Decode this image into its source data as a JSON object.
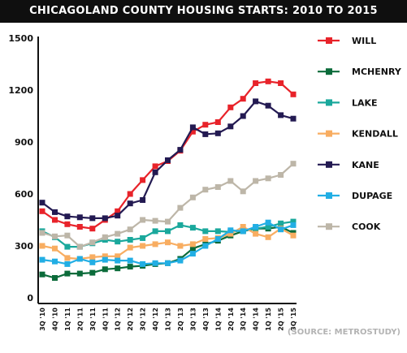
{
  "chart_data": {
    "type": "line",
    "title": "CHICAGOLAND COUNTY HOUSING STARTS: 2010 TO 2015",
    "xlabel": "",
    "ylabel": "",
    "ylim": [
      0,
      1500
    ],
    "yticks": [
      0,
      300,
      600,
      900,
      1200,
      1500
    ],
    "grid": false,
    "legend_position": "right",
    "categories": [
      "3Q '10",
      "4Q '10",
      "1Q '11",
      "2Q '11",
      "3Q '11",
      "4Q '11",
      "1Q '12",
      "2Q '12",
      "3Q '12",
      "4Q '12",
      "1Q '13",
      "2Q '13",
      "3Q '13",
      "4Q '13",
      "1Q '14",
      "2Q '14",
      "3Q '14",
      "4Q '14",
      "1Q '15",
      "2Q '15",
      "3Q '15"
    ],
    "series": [
      {
        "name": "WILL",
        "color": "#e8232a",
        "values": [
          500,
          450,
          425,
          410,
          400,
          450,
          500,
          600,
          680,
          760,
          790,
          850,
          960,
          1000,
          1015,
          1100,
          1150,
          1240,
          1250,
          1240,
          1175
        ]
      },
      {
        "name": "MCHENRY",
        "color": "#0b6b3a",
        "values": [
          135,
          115,
          140,
          140,
          145,
          165,
          170,
          180,
          185,
          195,
          200,
          225,
          285,
          310,
          330,
          360,
          385,
          400,
          400,
          410,
          375
        ]
      },
      {
        "name": "LAKE",
        "color": "#1aa89c",
        "values": [
          385,
          350,
          295,
          295,
          315,
          335,
          325,
          335,
          345,
          385,
          385,
          420,
          405,
          385,
          385,
          380,
          390,
          400,
          410,
          430,
          440
        ]
      },
      {
        "name": "KENDALL",
        "color": "#f8ad61",
        "values": [
          300,
          285,
          230,
          225,
          235,
          240,
          240,
          290,
          300,
          310,
          320,
          300,
          310,
          340,
          345,
          370,
          410,
          370,
          350,
          400,
          360
        ]
      },
      {
        "name": "KANE",
        "color": "#231a52",
        "values": [
          550,
          495,
          470,
          465,
          460,
          460,
          475,
          545,
          565,
          725,
          795,
          855,
          985,
          945,
          950,
          990,
          1050,
          1135,
          1110,
          1055,
          1035
        ]
      },
      {
        "name": "DUPAGE",
        "color": "#22aee4",
        "values": [
          220,
          210,
          195,
          225,
          205,
          220,
          215,
          215,
          195,
          200,
          200,
          215,
          255,
          300,
          340,
          390,
          385,
          410,
          435,
          395,
          420
        ]
      },
      {
        "name": "COOK",
        "color": "#bdb6a8",
        "values": [
          375,
          355,
          360,
          295,
          320,
          350,
          370,
          395,
          450,
          445,
          440,
          520,
          580,
          625,
          640,
          675,
          615,
          675,
          690,
          710,
          775
        ]
      }
    ],
    "source": "(SOURCE: METROSTUDY)"
  }
}
